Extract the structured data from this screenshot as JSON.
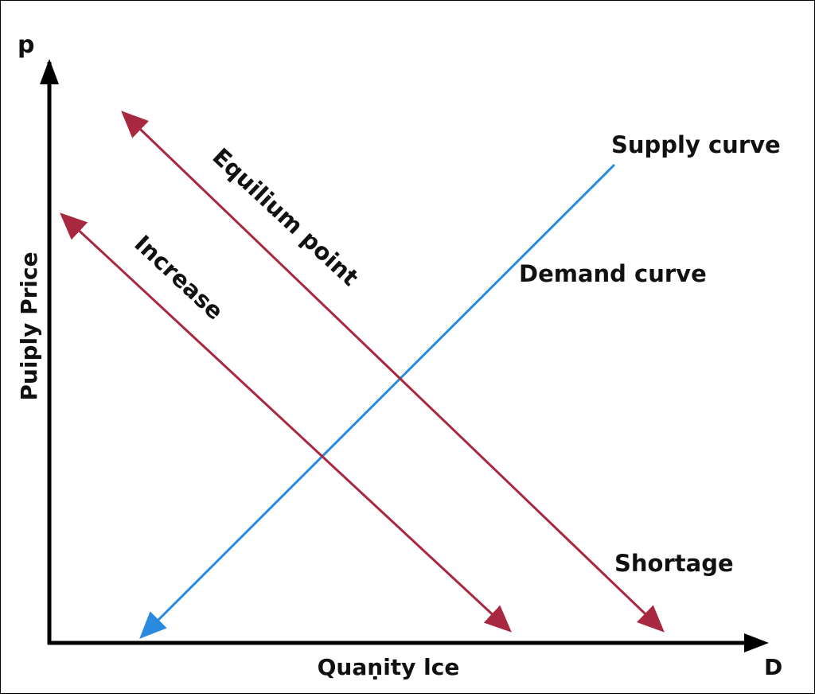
{
  "axes": {
    "y_symbol": "p",
    "x_symbol": "D",
    "y_label": "Puiply Price",
    "x_label": "Quaṇity lce"
  },
  "labels": {
    "supply": "Supply curve",
    "demand": "Demand curve",
    "shortage": "Shortage",
    "equilibrium": "Equilium point",
    "increase": "Increase"
  }
}
